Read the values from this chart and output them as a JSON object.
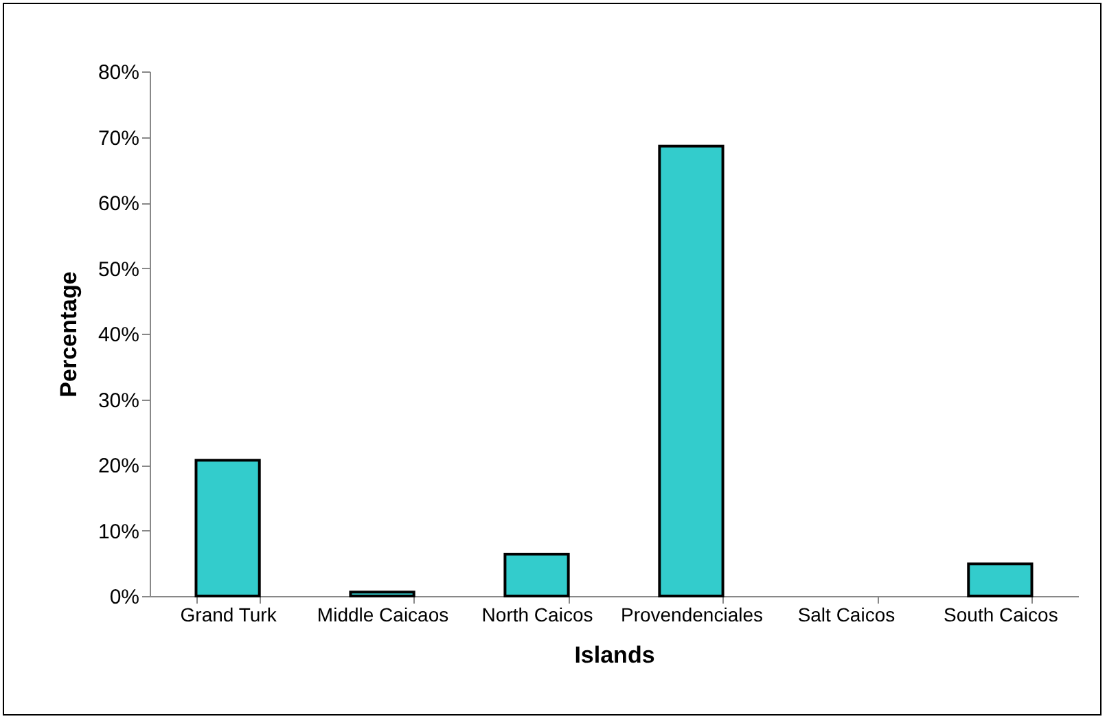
{
  "chart_data": {
    "type": "bar",
    "xlabel": "Islands",
    "ylabel": "Percentage",
    "categories": [
      "Grand Turk",
      "Middle Caicaos",
      "North Caicos",
      "Provendenciales",
      "Salt Caicos",
      "South Caicos"
    ],
    "values": [
      20.7,
      0.6,
      6.4,
      68.6,
      null,
      4.9
    ],
    "color": "#33cccc",
    "ylim": [
      0,
      80
    ],
    "yticks": [
      {
        "value": 0,
        "label": "0%"
      },
      {
        "value": 10,
        "label": "10%"
      },
      {
        "value": 20,
        "label": "20%"
      },
      {
        "value": 30,
        "label": "30%"
      },
      {
        "value": 40,
        "label": "40%"
      },
      {
        "value": 50,
        "label": "50%"
      },
      {
        "value": 60,
        "label": "60%"
      },
      {
        "value": 70,
        "label": "70%"
      },
      {
        "value": 80,
        "label": "80%"
      }
    ],
    "grid": false
  }
}
